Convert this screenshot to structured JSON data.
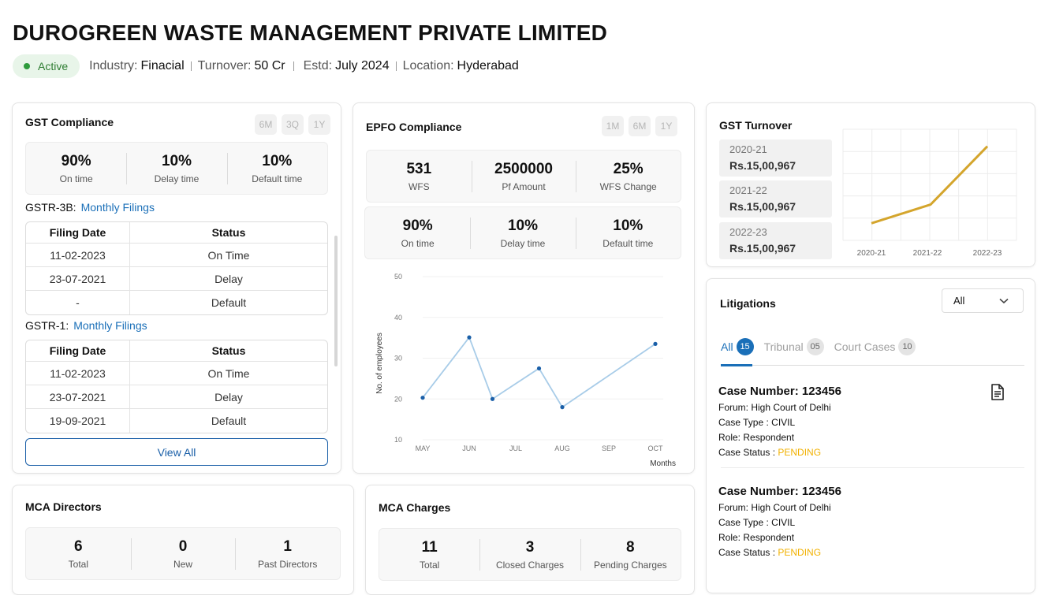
{
  "company": {
    "name": "DUROGREEN WASTE MANAGEMENT PRIVATE LIMITED",
    "status": "Active",
    "industry_label": "Industry:",
    "industry": "Finacial",
    "turnover_label": "Turnover:",
    "turnover": "50 Cr",
    "estd_label": "Estd:",
    "estd": "July 2024",
    "location_label": "Location:",
    "location": "Hyderabad"
  },
  "gst_compliance": {
    "title": "GST Compliance",
    "periods": [
      "6M",
      "3Q",
      "1Y"
    ],
    "stats": [
      {
        "value": "90%",
        "label": "On time"
      },
      {
        "value": "10%",
        "label": "Delay time"
      },
      {
        "value": "10%",
        "label": "Default time"
      }
    ],
    "gstr3b": {
      "label": "GSTR-3B:",
      "link": "Monthly Filings",
      "headers": [
        "Filing Date",
        "Status"
      ],
      "rows": [
        [
          "11-02-2023",
          "On Time"
        ],
        [
          "23-07-2021",
          "Delay"
        ],
        [
          "-",
          "Default"
        ]
      ]
    },
    "gstr1": {
      "label": "GSTR-1:",
      "link": "Monthly Filings",
      "headers": [
        "Filing Date",
        "Status"
      ],
      "rows": [
        [
          "11-02-2023",
          "On Time"
        ],
        [
          "23-07-2021",
          "Delay"
        ],
        [
          "19-09-2021",
          "Default"
        ]
      ]
    },
    "view_all": "View All"
  },
  "epfo": {
    "title": "EPFO Compliance",
    "periods": [
      "1M",
      "6M",
      "1Y"
    ],
    "stats_top": [
      {
        "value": "531",
        "label": "WFS"
      },
      {
        "value": "2500000",
        "label": "Pf Amount"
      },
      {
        "value": "25%",
        "label": "WFS Change"
      }
    ],
    "stats_bottom": [
      {
        "value": "90%",
        "label": "On time"
      },
      {
        "value": "10%",
        "label": "Delay time"
      },
      {
        "value": "10%",
        "label": "Default time"
      }
    ]
  },
  "gst_turnover": {
    "title": "GST Turnover",
    "items": [
      {
        "year": "2020-21",
        "amount": "Rs.15,00,967"
      },
      {
        "year": "2021-22",
        "amount": "Rs.15,00,967"
      },
      {
        "year": "2022-23",
        "amount": "Rs.15,00,967"
      }
    ]
  },
  "litigations": {
    "title": "Litigations",
    "filter": "All",
    "tabs": [
      {
        "label": "All",
        "count": "15"
      },
      {
        "label": "Tribunal",
        "count": "05"
      },
      {
        "label": "Court Cases",
        "count": "10"
      }
    ],
    "cases": [
      {
        "number": "Case Number: 123456",
        "forum": "Forum: High Court of Delhi",
        "type": "Case Type : CIVIL",
        "role": "Role: Respondent",
        "status_label": "Case Status : ",
        "status": "PENDING"
      },
      {
        "number": "Case Number: 123456",
        "forum": "Forum: High Court of Delhi",
        "type": "Case Type : CIVIL",
        "role": "Role: Respondent",
        "status_label": "Case Status : ",
        "status": "PENDING"
      }
    ]
  },
  "mca_directors": {
    "title": "MCA Directors",
    "stats": [
      {
        "value": "6",
        "label": "Total"
      },
      {
        "value": "0",
        "label": "New"
      },
      {
        "value": "1",
        "label": "Past Directors"
      }
    ]
  },
  "mca_charges": {
    "title": "MCA Charges",
    "stats": [
      {
        "value": "11",
        "label": "Total"
      },
      {
        "value": "3",
        "label": "Closed Charges"
      },
      {
        "value": "8",
        "label": "Pending Charges"
      }
    ]
  },
  "chart_data": [
    {
      "type": "line",
      "categories": [
        "MAY",
        "JUN",
        "JUL",
        "AUG",
        "SEP",
        "OCT"
      ],
      "points": [
        {
          "x": "MAY",
          "y": 20.3
        },
        {
          "x": "JUN",
          "y": 35.1
        },
        {
          "x": "JUN-JUL",
          "y": 20
        },
        {
          "x": "JUL-AUG",
          "y": 27.5
        },
        {
          "x": "AUG",
          "y": 18
        },
        {
          "x": "OCT",
          "y": 33.5
        }
      ],
      "yticks": [
        10,
        20,
        30,
        40,
        50
      ],
      "ylim": [
        10,
        50
      ],
      "ylabel": "No. of employees",
      "xlabel": "Months",
      "color": "#a8cce8",
      "marker_color": "#1a5fa8",
      "grid": true
    },
    {
      "type": "line",
      "categories": [
        "2020-21",
        "2021-22",
        "2022-23"
      ],
      "values": [
        1,
        2,
        5.5
      ],
      "color": "#d4a52c",
      "grid": true
    }
  ]
}
